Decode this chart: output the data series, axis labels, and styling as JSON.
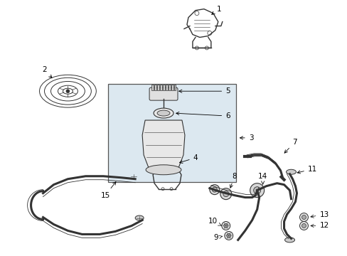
{
  "background_color": "#ffffff",
  "fig_width": 4.89,
  "fig_height": 3.6,
  "dpi": 100,
  "line_color": "#333333",
  "box_fill": "#dce8f0",
  "box_edge": "#555555"
}
